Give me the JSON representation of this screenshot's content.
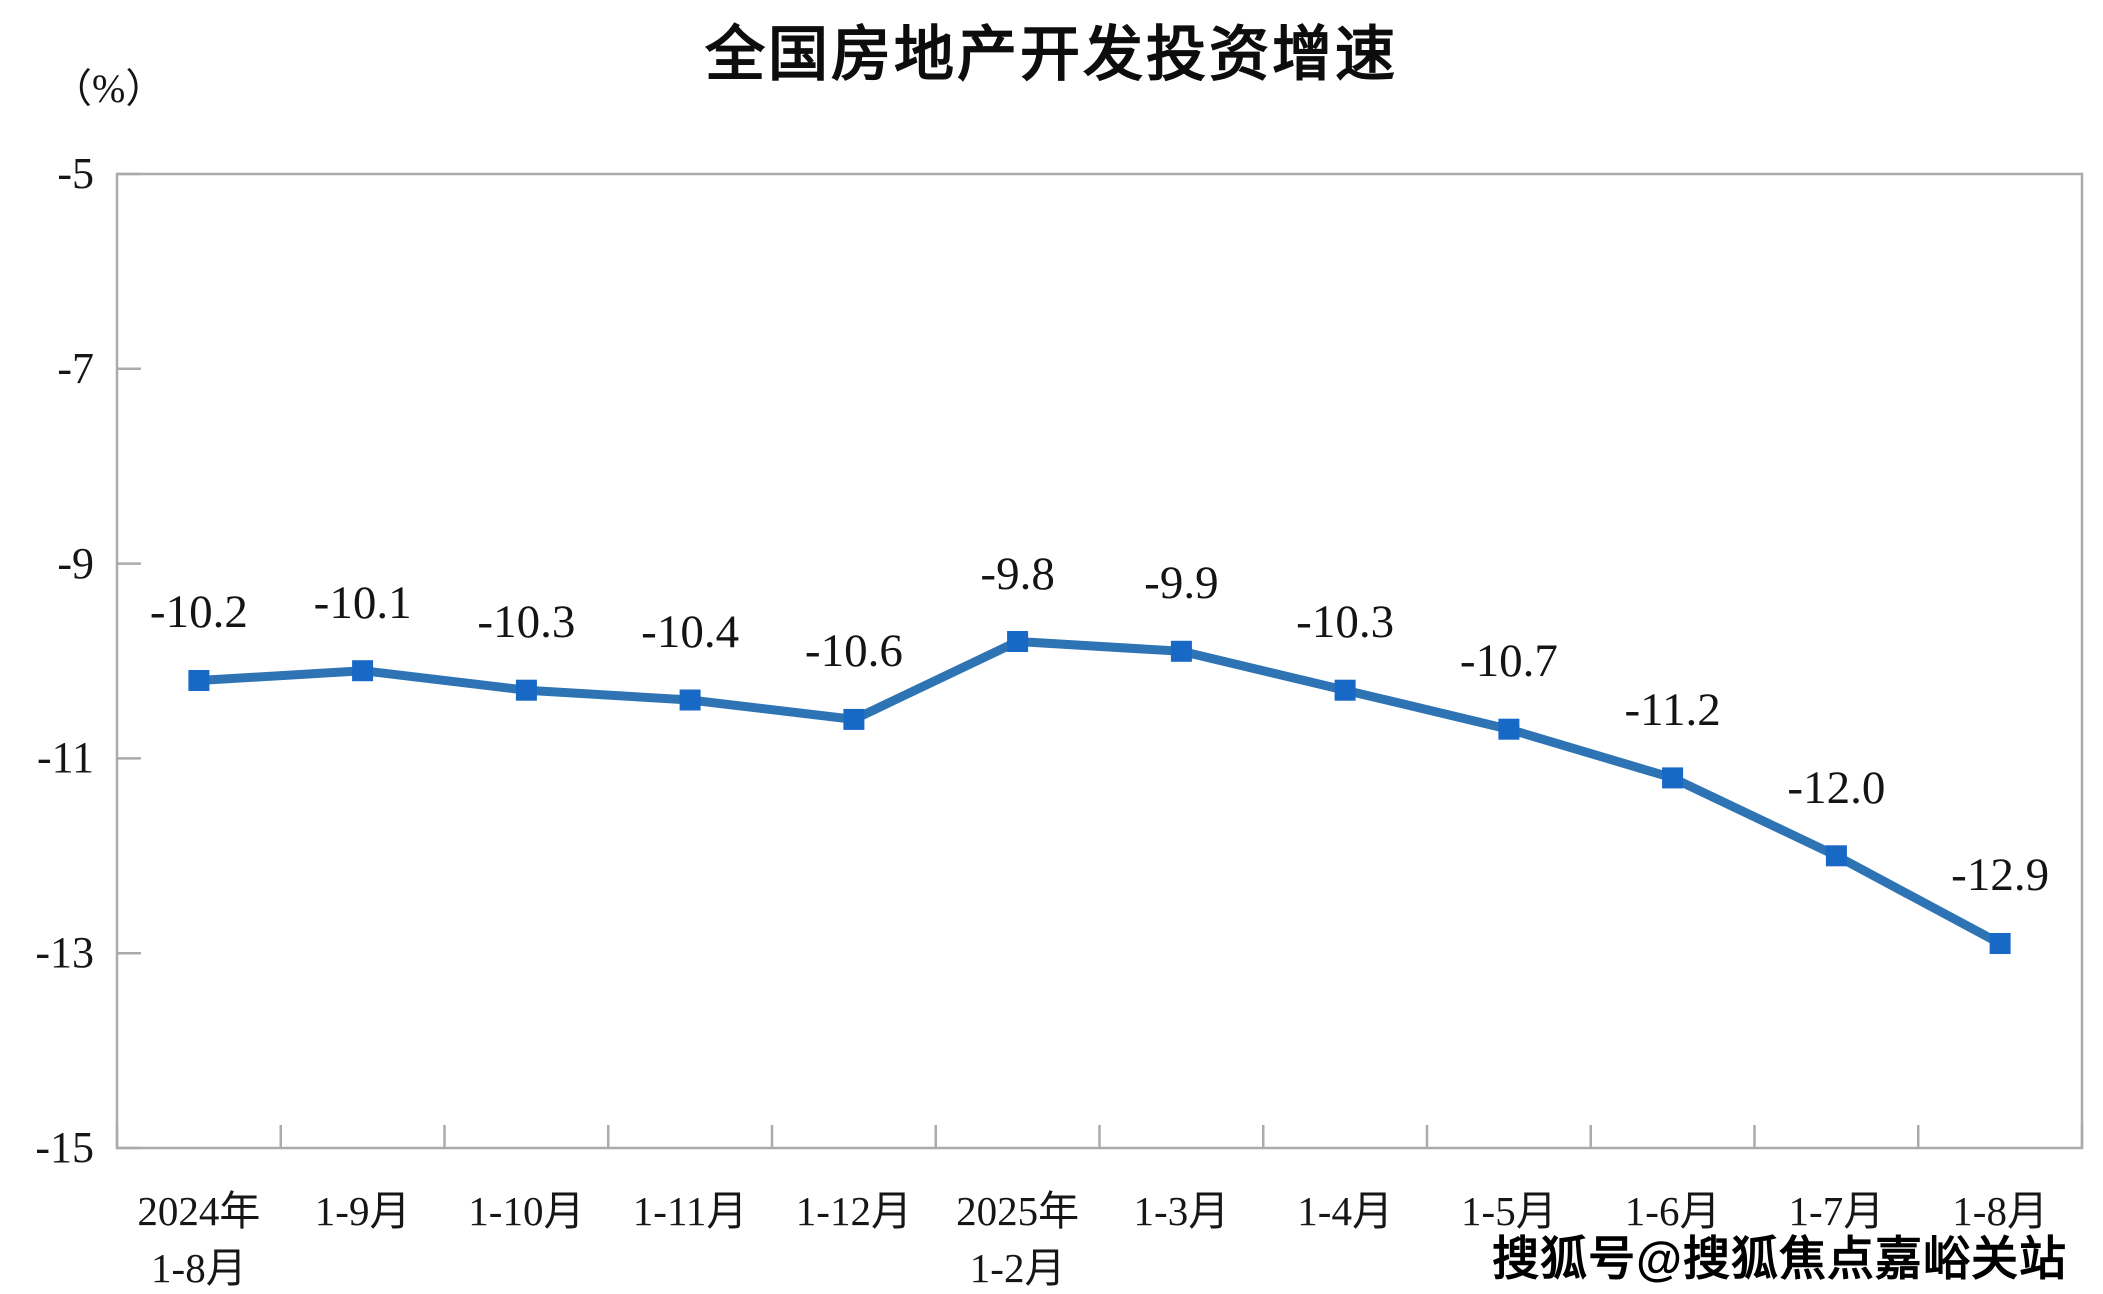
{
  "title": "全国房地产开发投资增速",
  "watermark": "搜狐号@搜狐焦点嘉峪关站",
  "chart_data": {
    "type": "line",
    "title": "全国房地产开发投资增速",
    "ylabel": "（%）",
    "xlabel": "",
    "categories": [
      "2024年\n1-8月",
      "1-9月",
      "1-10月",
      "1-11月",
      "1-12月",
      "2025年\n1-2月",
      "1-3月",
      "1-4月",
      "1-5月",
      "1-6月",
      "1-7月",
      "1-8月"
    ],
    "values": [
      -10.2,
      -10.1,
      -10.3,
      -10.4,
      -10.6,
      -9.8,
      -9.9,
      -10.3,
      -10.7,
      -11.2,
      -12.0,
      -12.9
    ],
    "data_labels": [
      "-10.2",
      "-10.1",
      "-10.3",
      "-10.4",
      "-10.6",
      "-9.8",
      "-9.9",
      "-10.3",
      "-10.7",
      "-11.2",
      "-12.0",
      "-12.9"
    ],
    "ylim": [
      -15,
      -5
    ],
    "yticks": [
      -5,
      -7,
      -9,
      -11,
      -13,
      -15
    ],
    "ytick_labels": [
      "-5",
      "-7",
      "-9",
      "-11",
      "-13",
      "-15"
    ],
    "grid": false,
    "legend": false,
    "line_color": "#2E74B5",
    "marker": "square",
    "marker_color": "#1868C6",
    "axis_color": "#ABABAB",
    "text_color": "#161616"
  }
}
